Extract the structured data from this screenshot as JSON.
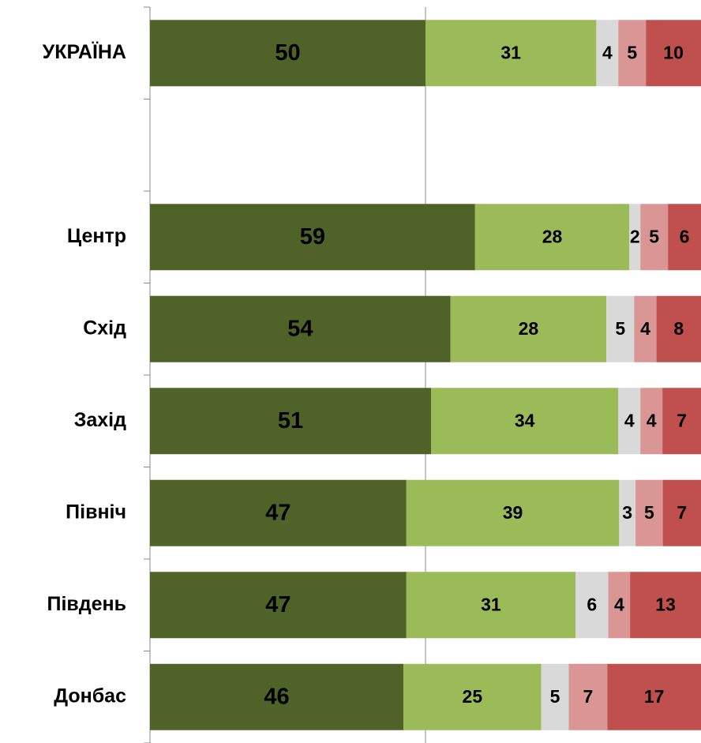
{
  "chart_data": {
    "type": "bar",
    "orientation": "horizontal",
    "stacked": "percent",
    "categories": [
      "УКРАЇНА",
      null,
      "Центр",
      "Схід",
      "Захід",
      "Північ",
      "Південь",
      "Донбас"
    ],
    "series": [
      {
        "color": "#4f6228",
        "values": [
          50,
          null,
          59,
          54,
          51,
          47,
          47,
          46
        ]
      },
      {
        "color": "#9bbb59",
        "values": [
          31,
          null,
          28,
          28,
          34,
          39,
          31,
          25
        ]
      },
      {
        "color": "#d9d9d9",
        "values": [
          4,
          null,
          2,
          5,
          4,
          3,
          6,
          5
        ]
      },
      {
        "color": "#d99694",
        "values": [
          5,
          null,
          5,
          4,
          4,
          5,
          4,
          7
        ]
      },
      {
        "color": "#c0504d",
        "values": [
          10,
          null,
          6,
          8,
          7,
          7,
          13,
          17
        ]
      }
    ],
    "xlim": [
      0,
      100
    ],
    "xticks": [
      50
    ],
    "grid": true
  }
}
